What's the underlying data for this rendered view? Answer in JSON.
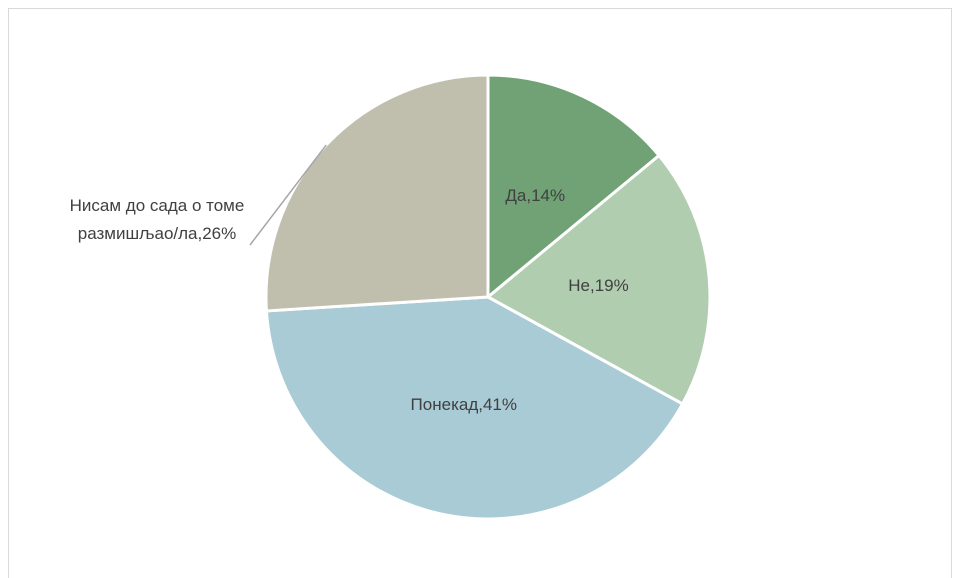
{
  "chart_data": {
    "type": "pie",
    "values": [
      14,
      19,
      41,
      26
    ],
    "value_labels": [
      "Да,14%",
      "Не,19%",
      "Понекад,41%",
      "Нисам до сада о томе размишљао/ла,26%"
    ],
    "colors": [
      "#70a275",
      "#b0cdb0",
      "#a9cbd5",
      "#c0bfae"
    ]
  }
}
